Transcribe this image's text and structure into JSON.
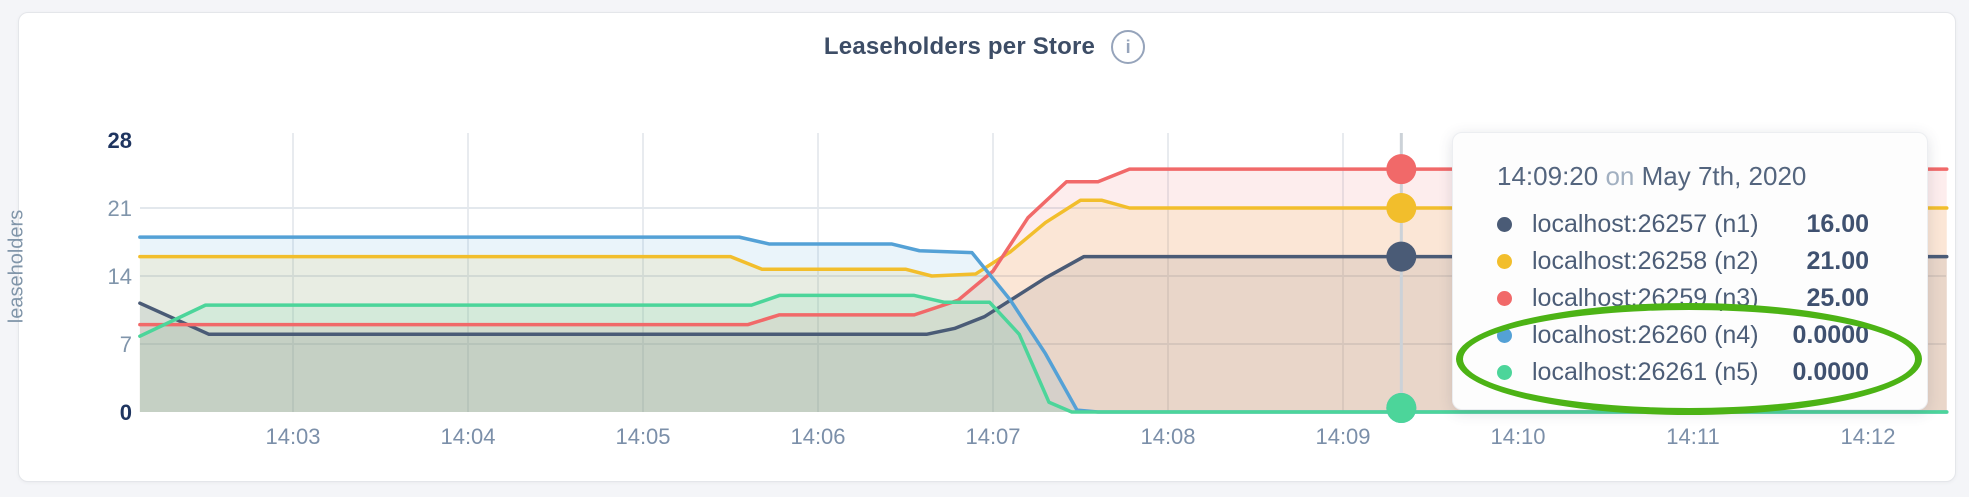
{
  "chart": {
    "title": "Leaseholders per Store",
    "info_glyph": "i",
    "y_axis_title": "leaseholders"
  },
  "tooltip": {
    "time": "14:09:20",
    "on_word": "on",
    "date": "May 7th, 2020",
    "rows": [
      {
        "name": "localhost:26257 (n1)",
        "value": "16.00",
        "color": "#4a5b76"
      },
      {
        "name": "localhost:26258 (n2)",
        "value": "21.00",
        "color": "#f2be2c"
      },
      {
        "name": "localhost:26259 (n3)",
        "value": "25.00",
        "color": "#f16969"
      },
      {
        "name": "localhost:26260 (n4)",
        "value": "0.0000",
        "color": "#54a1d6"
      },
      {
        "name": "localhost:26261 (n5)",
        "value": "0.0000",
        "color": "#4cd59a"
      }
    ]
  },
  "chart_data": {
    "type": "area",
    "title": "Leaseholders per Store",
    "ylabel": "leaseholders",
    "xlabel": "",
    "ylim": [
      0,
      28
    ],
    "y_ticks": [
      0,
      7,
      14,
      21,
      28
    ],
    "y_gridlines": [
      7,
      14,
      21
    ],
    "x_range_minutes": [
      2.125,
      12.45
    ],
    "x_ticks": [
      {
        "t": 3,
        "label": "14:03"
      },
      {
        "t": 4,
        "label": "14:04"
      },
      {
        "t": 5,
        "label": "14:05"
      },
      {
        "t": 6,
        "label": "14:06"
      },
      {
        "t": 7,
        "label": "14:07"
      },
      {
        "t": 8,
        "label": "14:08"
      },
      {
        "t": 9,
        "label": "14:09"
      },
      {
        "t": 10,
        "label": "14:10"
      },
      {
        "t": 11,
        "label": "14:11"
      },
      {
        "t": 12,
        "label": "14:12"
      }
    ],
    "grid_on": true,
    "legend_position": "tooltip-only",
    "series": [
      {
        "name": "localhost:26257 (n1)",
        "color": "#4a5b76",
        "points": [
          [
            2.125,
            11.2
          ],
          [
            2.52,
            8
          ],
          [
            6.62,
            8
          ],
          [
            6.78,
            8.6
          ],
          [
            6.95,
            9.8
          ],
          [
            7.3,
            13.8
          ],
          [
            7.52,
            16
          ],
          [
            12.45,
            16
          ]
        ]
      },
      {
        "name": "localhost:26258 (n2)",
        "color": "#f2be2c",
        "points": [
          [
            2.125,
            16
          ],
          [
            5.5,
            16
          ],
          [
            5.68,
            14.7
          ],
          [
            6.5,
            14.7
          ],
          [
            6.65,
            14
          ],
          [
            6.9,
            14.2
          ],
          [
            7.1,
            16.5
          ],
          [
            7.3,
            19.5
          ],
          [
            7.5,
            21.8
          ],
          [
            7.62,
            21.8
          ],
          [
            7.78,
            21
          ],
          [
            12.45,
            21
          ]
        ]
      },
      {
        "name": "localhost:26259 (n3)",
        "color": "#f16969",
        "points": [
          [
            2.125,
            9
          ],
          [
            5.6,
            9
          ],
          [
            5.78,
            10
          ],
          [
            6.55,
            10
          ],
          [
            6.8,
            11.5
          ],
          [
            7.0,
            14.5
          ],
          [
            7.2,
            20
          ],
          [
            7.42,
            23.7
          ],
          [
            7.6,
            23.7
          ],
          [
            7.78,
            25
          ],
          [
            12.45,
            25
          ]
        ]
      },
      {
        "name": "localhost:26260 (n4)",
        "color": "#54a1d6",
        "points": [
          [
            2.125,
            18
          ],
          [
            5.55,
            18
          ],
          [
            5.72,
            17.3
          ],
          [
            6.42,
            17.3
          ],
          [
            6.58,
            16.6
          ],
          [
            6.88,
            16.4
          ],
          [
            7.1,
            11.5
          ],
          [
            7.3,
            6
          ],
          [
            7.48,
            0.2
          ],
          [
            7.6,
            0
          ],
          [
            12.45,
            0
          ]
        ]
      },
      {
        "name": "localhost:26261 (n5)",
        "color": "#4cd59a",
        "points": [
          [
            2.125,
            7.8
          ],
          [
            2.5,
            11
          ],
          [
            5.62,
            11
          ],
          [
            5.78,
            12
          ],
          [
            6.55,
            12
          ],
          [
            6.72,
            11.3
          ],
          [
            6.98,
            11.3
          ],
          [
            7.15,
            8
          ],
          [
            7.32,
            1
          ],
          [
            7.45,
            0
          ],
          [
            12.45,
            0
          ]
        ]
      }
    ],
    "hover": {
      "time_label": "14:09:20 on May 7th, 2020",
      "t_minutes": 9.3333,
      "values": [
        16,
        21,
        25,
        0,
        0
      ]
    },
    "colors": {
      "grid_vertical": "#e8ebef",
      "grid_horizontal": "#e3e8ed",
      "hover_line": "#ccd2d8",
      "tick_label": "#8095ab",
      "tick_label_bold": "#1f3560",
      "fill_opacity": 0.12
    }
  }
}
